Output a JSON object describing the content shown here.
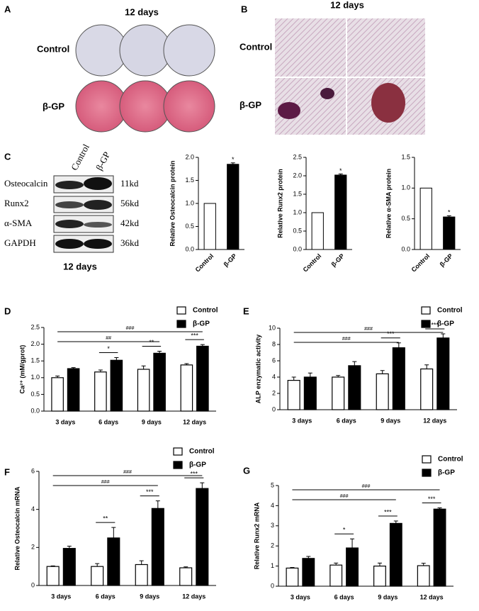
{
  "figure": {
    "panel_a": {
      "letter": "A",
      "title": "12 days",
      "rows": [
        "Control",
        "β-GP"
      ]
    },
    "panel_b": {
      "letter": "B",
      "title": "12 days",
      "rows": [
        "Control",
        "β-GP"
      ]
    },
    "panel_c": {
      "letter": "C",
      "lanes": [
        "Control",
        "β-GP"
      ],
      "caption": "12 days",
      "proteins": [
        {
          "name": "Osteocalcin",
          "size": "11kd"
        },
        {
          "name": "Runx2",
          "size": "56kd"
        },
        {
          "name": "α-SMA",
          "size": "42kd"
        },
        {
          "name": "GAPDH",
          "size": "36kd"
        }
      ]
    },
    "panel_letters": [
      "D",
      "E",
      "F",
      "G"
    ]
  },
  "chart_data": [
    {
      "type": "bar",
      "y_label": "Relative Osteocalcin protein",
      "categories": [
        "Control",
        "β-GP"
      ],
      "values": [
        1.0,
        1.85
      ],
      "errors": [
        null,
        0.03
      ],
      "colors": [
        "#ffffff",
        "#000000"
      ],
      "annotations": [
        null,
        "*"
      ],
      "ylim": [
        0,
        2.0
      ],
      "yticks": [
        {
          "value": 0,
          "label": "0.0"
        },
        0.5,
        {
          "value": 1,
          "label": "1.0"
        },
        1.5,
        {
          "value": 2,
          "label": "2.0"
        }
      ]
    },
    {
      "type": "bar",
      "y_label": "Relative Runx2 protein",
      "categories": [
        "Control",
        "β-GP"
      ],
      "values": [
        1.0,
        2.02
      ],
      "errors": [
        null,
        0.03
      ],
      "colors": [
        "#ffffff",
        "#000000"
      ],
      "annotations": [
        null,
        "*"
      ],
      "ylim": [
        0,
        2.5
      ],
      "yticks": [
        {
          "value": 0,
          "label": "0.0"
        },
        0.5,
        {
          "value": 1,
          "label": "1.0"
        },
        1.5,
        {
          "value": 2,
          "label": "2.0"
        },
        2.5
      ]
    },
    {
      "type": "bar",
      "y_label": "Relative α-SMA protein",
      "categories": [
        "Control",
        "β-GP"
      ],
      "values": [
        1.0,
        0.53
      ],
      "errors": [
        null,
        0.02
      ],
      "colors": [
        "#ffffff",
        "#000000"
      ],
      "annotations": [
        null,
        "*"
      ],
      "ylim": [
        0,
        1.5
      ],
      "yticks": [
        {
          "value": 0,
          "label": "0.0"
        },
        0.5,
        {
          "value": 1,
          "label": "1.0"
        },
        1.5
      ]
    },
    {
      "type": "grouped-bar",
      "y_label": "Ca²⁺ (mM/gprot)",
      "categories": [
        "3 days",
        "6 days",
        "9 days",
        "12 days"
      ],
      "legend": "top-right",
      "series": [
        {
          "name": "Control",
          "color": "#ffffff",
          "values": [
            1.0,
            1.17,
            1.25,
            1.38
          ],
          "errors": [
            0.05,
            0.06,
            0.1,
            0.04
          ]
        },
        {
          "name": "β-GP",
          "color": "#000000",
          "values": [
            1.27,
            1.52,
            1.73,
            1.94
          ],
          "errors": [
            0.03,
            0.08,
            0.06,
            0.05
          ],
          "annotations": [
            null,
            "*",
            "**",
            "***"
          ]
        }
      ],
      "brackets": [
        {
          "label": "##",
          "span": [
            "3 days",
            "9 days"
          ]
        },
        {
          "label": "###",
          "span": [
            "3 days",
            "12 days"
          ]
        }
      ],
      "ylim": [
        0,
        2.5
      ],
      "yticks": [
        {
          "value": 0,
          "label": "0.0"
        },
        0.5,
        {
          "value": 1,
          "label": "1.0"
        },
        1.5,
        {
          "value": 2,
          "label": "2.0"
        },
        2.5
      ]
    },
    {
      "type": "grouped-bar",
      "y_label": "ALP enzymatic activity",
      "categories": [
        "3 days",
        "6 days",
        "9 days",
        "12 days"
      ],
      "legend": "top-right",
      "series": [
        {
          "name": "Control",
          "color": "#ffffff",
          "values": [
            3.6,
            4.0,
            4.4,
            5.0
          ],
          "errors": [
            0.4,
            0.2,
            0.4,
            0.5
          ]
        },
        {
          "name": "β-GP",
          "color": "#000000",
          "values": [
            4.0,
            5.4,
            7.6,
            8.8
          ],
          "errors": [
            0.5,
            0.5,
            0.6,
            0.5
          ],
          "annotations": [
            null,
            null,
            "***",
            "***"
          ]
        }
      ],
      "brackets": [
        {
          "label": "###",
          "span": [
            "3 days",
            "9 days"
          ]
        },
        {
          "label": "###",
          "span": [
            "3 days",
            "12 days"
          ]
        }
      ],
      "ylim": [
        0,
        10
      ],
      "yticks": [
        0,
        2,
        4,
        6,
        8,
        10
      ]
    },
    {
      "type": "grouped-bar",
      "y_label": "Relative Osteocalcin mRNA",
      "categories": [
        "3 days",
        "6 days",
        "9 days",
        "12 days"
      ],
      "legend": "top-right",
      "series": [
        {
          "name": "Control",
          "color": "#ffffff",
          "values": [
            1.0,
            1.0,
            1.1,
            0.93
          ],
          "errors": [
            0.03,
            0.15,
            0.2,
            0.05
          ]
        },
        {
          "name": "β-GP",
          "color": "#000000",
          "values": [
            1.95,
            2.5,
            4.05,
            5.1
          ],
          "errors": [
            0.12,
            0.55,
            0.4,
            0.3
          ],
          "annotations": [
            null,
            "**",
            "***",
            "***"
          ]
        }
      ],
      "brackets": [
        {
          "label": "###",
          "span": [
            "3 days",
            "9 days"
          ]
        },
        {
          "label": "###",
          "span": [
            "3 days",
            "12 days"
          ]
        }
      ],
      "ylim": [
        0,
        6
      ],
      "yticks": [
        0,
        2,
        4,
        6
      ]
    },
    {
      "type": "grouped-bar",
      "y_label": "Relative Runx2  mRNA",
      "categories": [
        "3 days",
        "6 days",
        "9 days",
        "12 days"
      ],
      "legend": "top-right",
      "series": [
        {
          "name": "Control",
          "color": "#ffffff",
          "values": [
            0.9,
            1.05,
            1.0,
            1.02
          ],
          "errors": [
            0.03,
            0.1,
            0.15,
            0.12
          ]
        },
        {
          "name": "β-GP",
          "color": "#000000",
          "values": [
            1.38,
            1.9,
            3.12,
            3.83
          ],
          "errors": [
            0.1,
            0.45,
            0.12,
            0.06
          ],
          "annotations": [
            null,
            "*",
            "***",
            "***"
          ]
        }
      ],
      "brackets": [
        {
          "label": "###",
          "span": [
            "3 days",
            "9 days"
          ]
        },
        {
          "label": "###",
          "span": [
            "3 days",
            "12 days"
          ]
        }
      ],
      "ylim": [
        0,
        5
      ],
      "yticks": [
        0,
        1,
        2,
        3,
        4,
        5
      ]
    }
  ]
}
